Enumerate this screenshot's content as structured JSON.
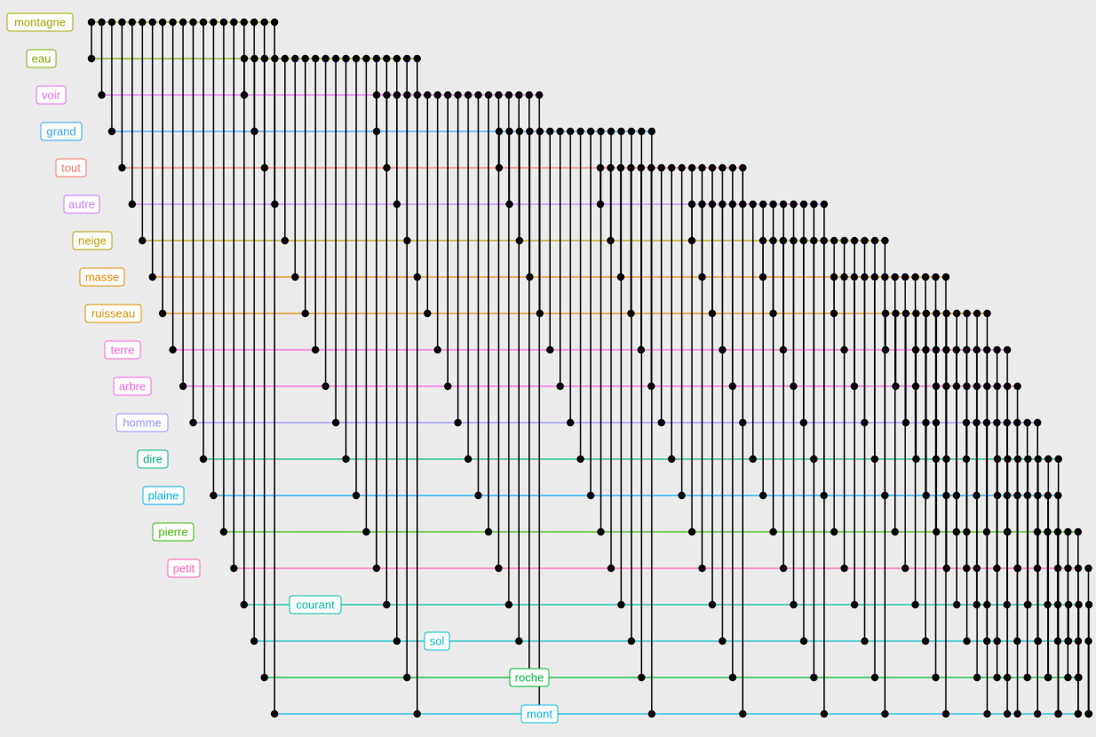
{
  "diagram": {
    "type": "word-cooccurrence-upset",
    "words": [
      {
        "label": "montagne",
        "color": "#a3a500"
      },
      {
        "label": "eau",
        "color": "#7cae00"
      },
      {
        "label": "voir",
        "color": "#e76bf3"
      },
      {
        "label": "grand",
        "color": "#35a2ff"
      },
      {
        "label": "tout",
        "color": "#f8766d"
      },
      {
        "label": "autre",
        "color": "#c77cff"
      },
      {
        "label": "neige",
        "color": "#b79f00"
      },
      {
        "label": "masse",
        "color": "#e58700"
      },
      {
        "label": "ruisseau",
        "color": "#d89000"
      },
      {
        "label": "terre",
        "color": "#fc61d5"
      },
      {
        "label": "arbre",
        "color": "#f564e3"
      },
      {
        "label": "homme",
        "color": "#9590ff"
      },
      {
        "label": "dire",
        "color": "#00b081"
      },
      {
        "label": "plaine",
        "color": "#00b0f6"
      },
      {
        "label": "pierre",
        "color": "#39b600"
      },
      {
        "label": "petit",
        "color": "#ff62bc"
      },
      {
        "label": "courant",
        "color": "#00bfa4"
      },
      {
        "label": "sol",
        "color": "#00bfc4"
      },
      {
        "label": "roche",
        "color": "#00ba38"
      },
      {
        "label": "mont",
        "color": "#00b9e3"
      }
    ]
  }
}
